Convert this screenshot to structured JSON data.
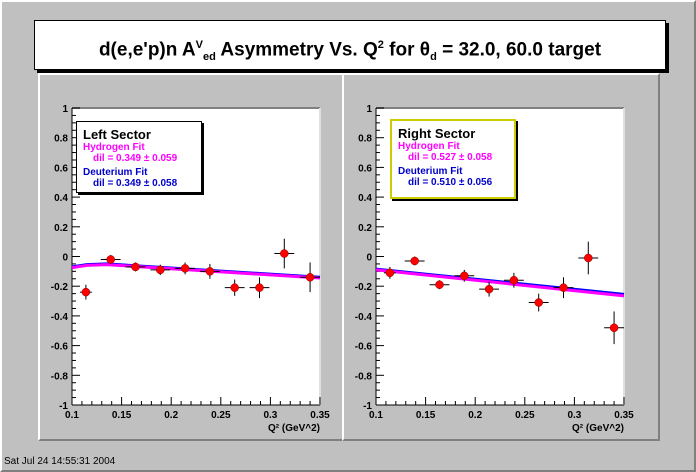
{
  "title": {
    "main": "d(e,e'p)n A",
    "sup": "V",
    "sub": "ed",
    "mid": " Asymmetry Vs. Q",
    "sup2": "2",
    "rest": " for θ",
    "sub2": "d",
    "tail": " = 32.0, 60.0 target"
  },
  "footer": "Sat Jul 24 14:55:31 2004",
  "colors": {
    "hydrogen": "#ff00ff",
    "deuterium": "#0000ff",
    "points": "#ff0000"
  },
  "chart_data": [
    {
      "type": "scatter",
      "name": "left",
      "legend_placement": "top-left",
      "legend": {
        "heading": "Left Sector",
        "hydrogen_label": "Hydrogen Fit",
        "hydrogen_value": "dil = 0.349 ± 0.059",
        "deuterium_label": "Deuterium Fit",
        "deuterium_value": "dil = 0.349 ± 0.058"
      },
      "xlabel": "Q² (GeV^2)",
      "xlim": [
        0.1,
        0.35
      ],
      "ylim": [
        -1,
        1
      ],
      "xticks": [
        "0.1",
        "0.15",
        "0.2",
        "0.25",
        "0.3",
        "0.35"
      ],
      "yticks": [
        "-1",
        "-0.8",
        "-0.6",
        "-0.4",
        "-0.2",
        "0",
        "0.2",
        "0.4",
        "0.6",
        "0.8",
        "1"
      ],
      "points": [
        {
          "x": 0.114,
          "y": -0.24,
          "xerr": 0.006,
          "yerr": 0.05
        },
        {
          "x": 0.139,
          "y": -0.02,
          "xerr": 0.01,
          "yerr": 0.03
        },
        {
          "x": 0.164,
          "y": -0.07,
          "xerr": 0.01,
          "yerr": 0.03
        },
        {
          "x": 0.189,
          "y": -0.09,
          "xerr": 0.01,
          "yerr": 0.035
        },
        {
          "x": 0.214,
          "y": -0.08,
          "xerr": 0.01,
          "yerr": 0.04
        },
        {
          "x": 0.239,
          "y": -0.1,
          "xerr": 0.01,
          "yerr": 0.05
        },
        {
          "x": 0.264,
          "y": -0.21,
          "xerr": 0.01,
          "yerr": 0.055
        },
        {
          "x": 0.289,
          "y": -0.21,
          "xerr": 0.01,
          "yerr": 0.07
        },
        {
          "x": 0.314,
          "y": 0.02,
          "xerr": 0.01,
          "yerr": 0.1
        },
        {
          "x": 0.34,
          "y": -0.14,
          "xerr": 0.01,
          "yerr": 0.1
        }
      ],
      "fits": {
        "hydrogen": {
          "x": [
            0.1,
            0.115,
            0.135,
            0.35
          ],
          "y": [
            -0.075,
            -0.06,
            -0.055,
            -0.145
          ]
        },
        "deuterium": {
          "x": [
            0.1,
            0.115,
            0.135,
            0.35
          ],
          "y": [
            -0.07,
            -0.055,
            -0.05,
            -0.14
          ]
        }
      }
    },
    {
      "type": "scatter",
      "name": "right",
      "legend_placement": "top-left",
      "legend": {
        "heading": "Right Sector",
        "hydrogen_label": "Hydrogen Fit",
        "hydrogen_value": "dil = 0.527 ± 0.058",
        "deuterium_label": "Deuterium Fit",
        "deuterium_value": "dil = 0.510 ± 0.056"
      },
      "xlabel": "Q² (GeV^2)",
      "xlim": [
        0.1,
        0.35
      ],
      "ylim": [
        -1,
        1
      ],
      "xticks": [
        "0.1",
        "0.15",
        "0.2",
        "0.25",
        "0.3",
        "0.35"
      ],
      "yticks": [
        "-1",
        "-0.8",
        "-0.6",
        "-0.4",
        "-0.2",
        "0",
        "0.2",
        "0.4",
        "0.6",
        "0.8",
        "1"
      ],
      "points": [
        {
          "x": 0.114,
          "y": -0.11,
          "xerr": 0.006,
          "yerr": 0.04
        },
        {
          "x": 0.139,
          "y": -0.03,
          "xerr": 0.01,
          "yerr": 0.03
        },
        {
          "x": 0.164,
          "y": -0.19,
          "xerr": 0.01,
          "yerr": 0.03
        },
        {
          "x": 0.189,
          "y": -0.13,
          "xerr": 0.01,
          "yerr": 0.04
        },
        {
          "x": 0.214,
          "y": -0.22,
          "xerr": 0.01,
          "yerr": 0.05
        },
        {
          "x": 0.239,
          "y": -0.16,
          "xerr": 0.01,
          "yerr": 0.05
        },
        {
          "x": 0.264,
          "y": -0.31,
          "xerr": 0.01,
          "yerr": 0.06
        },
        {
          "x": 0.289,
          "y": -0.21,
          "xerr": 0.01,
          "yerr": 0.07
        },
        {
          "x": 0.314,
          "y": -0.01,
          "xerr": 0.01,
          "yerr": 0.11
        },
        {
          "x": 0.34,
          "y": -0.48,
          "xerr": 0.01,
          "yerr": 0.11
        }
      ],
      "fits": {
        "hydrogen": {
          "x": [
            0.1,
            0.35
          ],
          "y": [
            -0.09,
            -0.265
          ]
        },
        "deuterium": {
          "x": [
            0.1,
            0.35
          ],
          "y": [
            -0.085,
            -0.255
          ]
        }
      }
    }
  ]
}
